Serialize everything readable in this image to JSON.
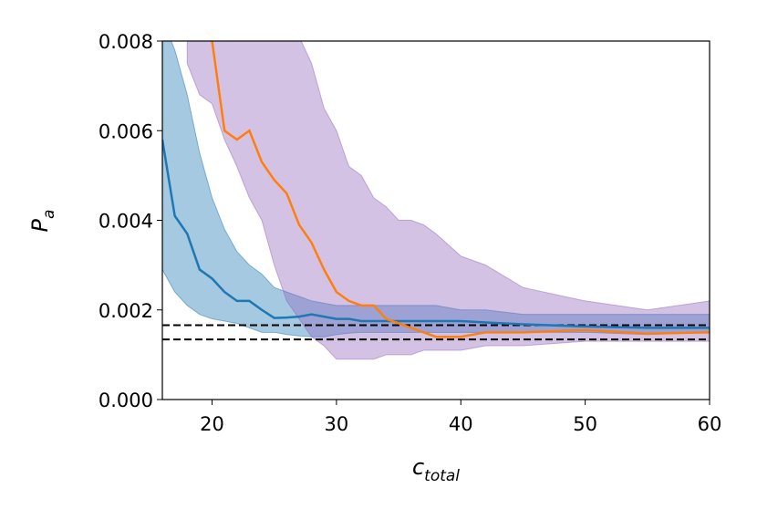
{
  "chart_data": {
    "type": "line",
    "x": [
      16,
      17,
      18,
      19,
      20,
      21,
      22,
      23,
      24,
      25,
      26,
      27,
      28,
      29,
      30,
      31,
      32,
      33,
      34,
      35,
      36,
      37,
      38,
      40,
      42,
      45,
      50,
      55,
      60
    ],
    "series": [
      {
        "color": "#1f77b4",
        "band_color": "#1f77b4",
        "values": [
          0.0058,
          0.0041,
          0.0037,
          0.0029,
          0.0027,
          0.0024,
          0.0022,
          0.0022,
          0.002,
          0.00182,
          0.00183,
          0.00185,
          0.0019,
          0.00185,
          0.0018,
          0.0018,
          0.00175,
          0.00175,
          0.00175,
          0.00175,
          0.00175,
          0.00175,
          0.00175,
          0.00175,
          0.00172,
          0.00168,
          0.00163,
          0.0016,
          0.0016
        ],
        "upper": [
          0.0085,
          0.0078,
          0.0068,
          0.0055,
          0.0045,
          0.0038,
          0.0033,
          0.003,
          0.0028,
          0.0025,
          0.0024,
          0.0023,
          0.0022,
          0.00215,
          0.0021,
          0.0021,
          0.0021,
          0.0021,
          0.0021,
          0.0021,
          0.0021,
          0.0021,
          0.0021,
          0.002,
          0.002,
          0.0019,
          0.0019,
          0.0019,
          0.0019
        ],
        "lower": [
          0.0029,
          0.0024,
          0.0021,
          0.0019,
          0.0018,
          0.00175,
          0.0017,
          0.0016,
          0.0015,
          0.0015,
          0.00145,
          0.00142,
          0.0014,
          0.0014,
          0.00145,
          0.00148,
          0.0015,
          0.0015,
          0.0015,
          0.0015,
          0.0015,
          0.0015,
          0.0015,
          0.0015,
          0.0015,
          0.0015,
          0.0015,
          0.00145,
          0.0015
        ]
      },
      {
        "color": "#ff7f0e",
        "band_color": "#9467bd",
        "values": [
          null,
          null,
          null,
          null,
          0.008,
          0.006,
          0.0058,
          0.006,
          0.0053,
          0.0049,
          0.0046,
          0.0039,
          0.0035,
          0.0029,
          0.0024,
          0.0022,
          0.0021,
          0.0021,
          0.0018,
          0.0017,
          0.0016,
          0.0015,
          0.0014,
          0.0014,
          0.0015,
          0.0015,
          0.00155,
          0.00147,
          0.0015
        ],
        "upper": [
          null,
          null,
          0.0085,
          0.0085,
          0.0085,
          0.0085,
          0.0085,
          0.0085,
          0.0085,
          0.0085,
          0.0085,
          0.0081,
          0.0075,
          0.0065,
          0.006,
          0.0052,
          0.005,
          0.0045,
          0.0043,
          0.004,
          0.004,
          0.0039,
          0.0037,
          0.0032,
          0.003,
          0.0025,
          0.0022,
          0.002,
          0.0022
        ],
        "lower": [
          null,
          null,
          0.0075,
          0.0068,
          0.0066,
          0.0058,
          0.0052,
          0.0045,
          0.004,
          0.003,
          0.0022,
          0.0018,
          0.0014,
          0.0012,
          0.0009,
          0.0009,
          0.0009,
          0.0009,
          0.001,
          0.001,
          0.001,
          0.0011,
          0.0011,
          0.0011,
          0.0012,
          0.0012,
          0.0013,
          0.0013,
          0.0013
        ]
      }
    ],
    "hlines": [
      0.00166,
      0.00134
    ],
    "hline_color": "#000000",
    "xlim": [
      16,
      60
    ],
    "xticks": [
      20,
      30,
      40,
      50,
      60
    ],
    "ylim": [
      0,
      0.008
    ],
    "yticks": [
      {
        "value": 0,
        "label": "0.000"
      },
      {
        "value": 0.002,
        "label": "0.002"
      },
      {
        "value": 0.004,
        "label": "0.004"
      },
      {
        "value": 0.006,
        "label": "0.006"
      },
      {
        "value": 0.008,
        "label": "0.008"
      }
    ],
    "xlabel": {
      "main": "c",
      "sub": "total"
    },
    "ylabel": {
      "main": "P",
      "sub": "a"
    }
  }
}
